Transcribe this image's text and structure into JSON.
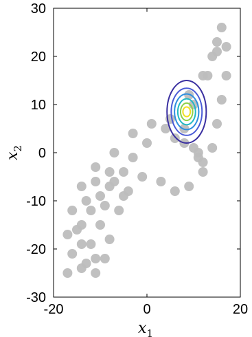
{
  "chart_data": {
    "type": "scatter",
    "title": "",
    "xlabel": "x",
    "xlabel_sub": "1",
    "ylabel": "x",
    "ylabel_sub": "2",
    "xlim": [
      -20,
      20
    ],
    "ylim": [
      -30,
      30
    ],
    "xticks": [
      -20,
      0,
      20
    ],
    "yticks": [
      -30,
      -20,
      -10,
      0,
      10,
      20,
      30
    ],
    "grid": false,
    "legend": "none",
    "scatter_color": "#bdbdbd",
    "attractor_points": [
      [
        -17,
        -25
      ],
      [
        -17,
        -17
      ],
      [
        -16,
        -12
      ],
      [
        -14,
        -7
      ],
      [
        -11,
        -3
      ],
      [
        -7,
        0
      ],
      [
        -3,
        4
      ],
      [
        1,
        6
      ],
      [
        4,
        5
      ],
      [
        6,
        3
      ],
      [
        8,
        2
      ],
      [
        10,
        1
      ],
      [
        11,
        0
      ],
      [
        12,
        -2
      ],
      [
        11,
        -1
      ],
      [
        8,
        5
      ],
      [
        10,
        10
      ],
      [
        13,
        16
      ],
      [
        15,
        21
      ],
      [
        16,
        26
      ],
      [
        17,
        22
      ],
      [
        17,
        16
      ],
      [
        16,
        11
      ],
      [
        15,
        6
      ],
      [
        14,
        1
      ],
      [
        12,
        -4
      ],
      [
        9,
        -7
      ],
      [
        6,
        -8
      ],
      [
        3,
        -6
      ],
      [
        -1,
        -5
      ],
      [
        -5,
        -4
      ],
      [
        -8,
        -4
      ],
      [
        -11,
        -6
      ],
      [
        -13,
        -10
      ],
      [
        -14,
        -15
      ],
      [
        -14,
        -19
      ],
      [
        -13,
        -23
      ],
      [
        -11,
        -25
      ],
      [
        -9,
        -22
      ],
      [
        -8,
        -18
      ],
      [
        -6,
        -12
      ],
      [
        -5,
        -9
      ],
      [
        -4,
        -8
      ],
      [
        -8,
        -7
      ],
      [
        -9,
        -11
      ],
      [
        -10,
        -15
      ],
      [
        -12,
        -19
      ],
      [
        -11,
        -22
      ],
      [
        -14,
        -24
      ],
      [
        -16,
        -21
      ],
      [
        -15,
        -16
      ],
      [
        -12,
        -12
      ],
      [
        -10,
        -9
      ],
      [
        -7,
        -6
      ],
      [
        -3,
        -1
      ],
      [
        0,
        2
      ],
      [
        5,
        7
      ],
      [
        9,
        12
      ],
      [
        12,
        16
      ],
      [
        14,
        20
      ],
      [
        15,
        23
      ]
    ],
    "contour": {
      "center": [
        8.5,
        8.5
      ],
      "levels": [
        {
          "rx": 4.2,
          "ry": 6.5,
          "color": "#3a2fa0"
        },
        {
          "rx": 3.3,
          "ry": 4.9,
          "color": "#4a5bd6"
        },
        {
          "rx": 2.6,
          "ry": 3.7,
          "color": "#2f8fe0"
        },
        {
          "rx": 1.9,
          "ry": 2.7,
          "color": "#21b8c4"
        },
        {
          "rx": 1.3,
          "ry": 1.8,
          "color": "#8ed14a"
        },
        {
          "rx": 0.8,
          "ry": 1.0,
          "color": "#f0e020"
        }
      ]
    }
  }
}
